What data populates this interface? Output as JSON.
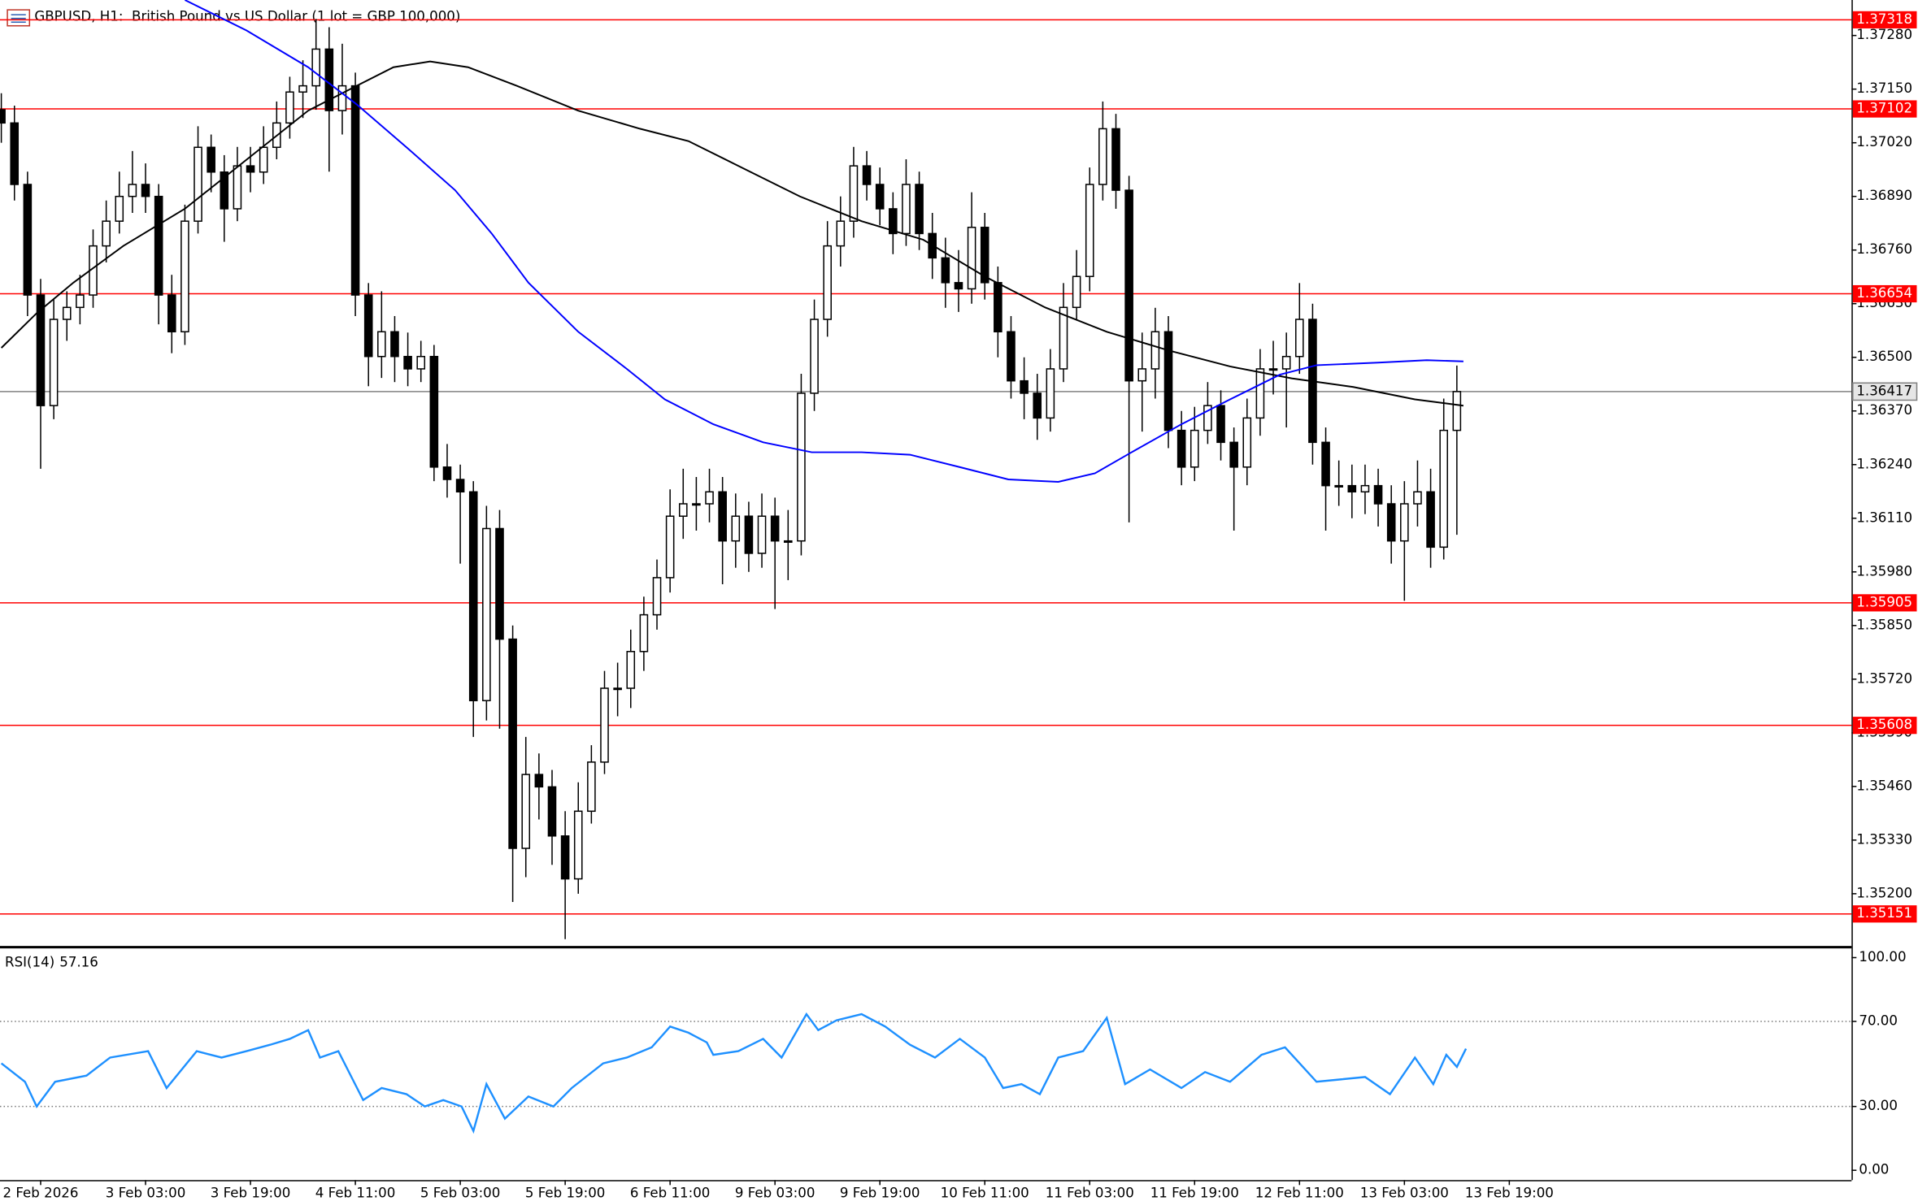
{
  "chart_data": {
    "type": "candlestick",
    "title": "GBPUSD, H1:  British Pound vs US Dollar (1 lot = GBP 100,000)",
    "xlim": [
      -0.1,
      141.1
    ],
    "xticks": [
      {
        "value": 3,
        "label": "2 Feb 2026"
      },
      {
        "value": 11,
        "label": "3 Feb 03:00"
      },
      {
        "value": 19,
        "label": "3 Feb 19:00"
      },
      {
        "value": 27,
        "label": "4 Feb 11:00"
      },
      {
        "value": 35,
        "label": "5 Feb 03:00"
      },
      {
        "value": 43,
        "label": "5 Feb 19:00"
      },
      {
        "value": 51,
        "label": "6 Feb 11:00"
      },
      {
        "value": 59,
        "label": "9 Feb 03:00"
      },
      {
        "value": 67,
        "label": "9 Feb 19:00"
      },
      {
        "value": 75,
        "label": "10 Feb 11:00"
      },
      {
        "value": 83,
        "label": "11 Feb 03:00"
      },
      {
        "value": 91,
        "label": "11 Feb 19:00"
      },
      {
        "value": 99,
        "label": "12 Feb 11:00"
      },
      {
        "value": 107,
        "label": "13 Feb 03:00"
      },
      {
        "value": 115,
        "label": "13 Feb 19:00"
      }
    ],
    "ylim": [
      1.35072,
      1.37366
    ],
    "yticks": [
      {
        "value": 1.3728,
        "label": "1.37280"
      },
      {
        "value": 1.3715,
        "label": "1.37150"
      },
      {
        "value": 1.3702,
        "label": "1.37020"
      },
      {
        "value": 1.3689,
        "label": "1.36890"
      },
      {
        "value": 1.3676,
        "label": "1.36760"
      },
      {
        "value": 1.3663,
        "label": "1.36630"
      },
      {
        "value": 1.365,
        "label": "1.36500"
      },
      {
        "value": 1.3637,
        "label": "1.36370"
      },
      {
        "value": 1.3624,
        "label": "1.36240"
      },
      {
        "value": 1.3611,
        "label": "1.36110"
      },
      {
        "value": 1.3598,
        "label": "1.35980"
      },
      {
        "value": 1.3585,
        "label": "1.35850"
      },
      {
        "value": 1.3572,
        "label": "1.35720"
      },
      {
        "value": 1.3559,
        "label": "1.35590"
      },
      {
        "value": 1.3546,
        "label": "1.35460"
      },
      {
        "value": 1.3533,
        "label": "1.35330"
      },
      {
        "value": 1.352,
        "label": "1.35200"
      }
    ],
    "bull_color": "#ffffff",
    "bear_color": "#000000",
    "open": [
      1.371,
      1.37068,
      1.36919,
      1.36651,
      1.36383,
      1.36592,
      1.36621,
      1.36651,
      1.3677,
      1.3683,
      1.3689,
      1.36919,
      1.3689,
      1.36651,
      1.36562,
      1.3683,
      1.37009,
      1.36949,
      1.3686,
      1.36964,
      1.36949,
      1.37009,
      1.37068,
      1.37143,
      1.37158,
      1.37247,
      1.37098,
      1.37158,
      1.36651,
      1.36502,
      1.36562,
      1.36502,
      1.36472,
      1.36502,
      1.36234,
      1.36204,
      1.36174,
      1.35668,
      1.36085,
      1.35817,
      1.3531,
      1.35489,
      1.35459,
      1.3534,
      1.35236,
      1.354,
      1.35519,
      1.35698,
      1.35698,
      1.35787,
      1.35876,
      1.35966,
      1.36115,
      1.36145,
      1.36145,
      1.36174,
      1.36055,
      1.36115,
      1.36025,
      1.36115,
      1.36055,
      1.36055,
      1.36413,
      1.36592,
      1.3677,
      1.3683,
      1.36964,
      1.36919,
      1.3686,
      1.368,
      1.36919,
      1.368,
      1.36741,
      1.36681,
      1.36666,
      1.36815,
      1.36681,
      1.36562,
      1.36443,
      1.36413,
      1.36353,
      1.36472,
      1.36621,
      1.36696,
      1.36919,
      1.37054,
      1.36905,
      1.36443,
      1.36472,
      1.36562,
      1.36323,
      1.36234,
      1.36323,
      1.36383,
      1.36294,
      1.36234,
      1.36353,
      1.36472,
      1.36472,
      1.36502,
      1.36592,
      1.36294,
      1.36189,
      1.36189,
      1.36174,
      1.36189,
      1.36145,
      1.36055,
      1.36145,
      1.36174,
      1.3604,
      1.36323
    ],
    "high": [
      1.3714,
      1.3711,
      1.3695,
      1.3669,
      1.3664,
      1.3666,
      1.367,
      1.3681,
      1.3688,
      1.3695,
      1.37,
      1.3697,
      1.3692,
      1.367,
      1.3687,
      1.3706,
      1.3704,
      1.3699,
      1.3701,
      1.3701,
      1.3706,
      1.3712,
      1.3718,
      1.3722,
      1.3732,
      1.373,
      1.3726,
      1.3719,
      1.3668,
      1.3666,
      1.366,
      1.3656,
      1.3654,
      1.3653,
      1.3629,
      1.3624,
      1.362,
      1.3614,
      1.3613,
      1.3585,
      1.3558,
      1.3554,
      1.355,
      1.354,
      1.3547,
      1.3556,
      1.3574,
      1.3576,
      1.3584,
      1.3592,
      1.3601,
      1.3618,
      1.3623,
      1.3621,
      1.3623,
      1.3621,
      1.3617,
      1.3615,
      1.3617,
      1.3616,
      1.3613,
      1.3646,
      1.3664,
      1.3683,
      1.3689,
      1.3701,
      1.37,
      1.3696,
      1.369,
      1.3698,
      1.3695,
      1.3685,
      1.3679,
      1.3676,
      1.369,
      1.3685,
      1.3672,
      1.366,
      1.365,
      1.3646,
      1.3652,
      1.3668,
      1.3676,
      1.3696,
      1.3712,
      1.3709,
      1.3694,
      1.3656,
      1.3662,
      1.366,
      1.3637,
      1.3638,
      1.3644,
      1.3642,
      1.3633,
      1.364,
      1.3652,
      1.3654,
      1.3656,
      1.3668,
      1.3663,
      1.3633,
      1.3625,
      1.3624,
      1.3624,
      1.3623,
      1.3619,
      1.362,
      1.3625,
      1.3623,
      1.364,
      1.3648
    ],
    "low": [
      1.3702,
      1.3688,
      1.366,
      1.3623,
      1.3635,
      1.3654,
      1.3658,
      1.3662,
      1.3673,
      1.368,
      1.3685,
      1.3685,
      1.3658,
      1.3651,
      1.3653,
      1.368,
      1.369,
      1.3678,
      1.3683,
      1.369,
      1.3692,
      1.3698,
      1.3703,
      1.3708,
      1.371,
      1.3695,
      1.3704,
      1.366,
      1.3643,
      1.3645,
      1.3644,
      1.3643,
      1.3644,
      1.362,
      1.3616,
      1.36,
      1.3558,
      1.3562,
      1.356,
      1.3518,
      1.3524,
      1.3538,
      1.3527,
      1.3509,
      1.352,
      1.3537,
      1.3549,
      1.3563,
      1.3565,
      1.3574,
      1.3584,
      1.3593,
      1.3606,
      1.3608,
      1.361,
      1.3595,
      1.3599,
      1.3598,
      1.3599,
      1.3589,
      1.3596,
      1.3602,
      1.3637,
      1.3655,
      1.3672,
      1.3679,
      1.3688,
      1.3682,
      1.3675,
      1.3677,
      1.3676,
      1.3669,
      1.3662,
      1.3661,
      1.3663,
      1.3664,
      1.365,
      1.364,
      1.3635,
      1.363,
      1.3632,
      1.3644,
      1.3659,
      1.3666,
      1.3688,
      1.3686,
      1.361,
      1.3632,
      1.364,
      1.3628,
      1.3619,
      1.362,
      1.3629,
      1.3625,
      1.3608,
      1.3619,
      1.3631,
      1.3641,
      1.3633,
      1.3646,
      1.3624,
      1.3608,
      1.3614,
      1.3611,
      1.3612,
      1.3609,
      1.36,
      1.3591,
      1.3609,
      1.3599,
      1.3601,
      1.3607
    ],
    "close": [
      1.37068,
      1.36919,
      1.36651,
      1.36383,
      1.36592,
      1.36621,
      1.36651,
      1.3677,
      1.3683,
      1.3689,
      1.36919,
      1.3689,
      1.36651,
      1.36562,
      1.3683,
      1.37009,
      1.36949,
      1.3686,
      1.36964,
      1.36949,
      1.37009,
      1.37068,
      1.37143,
      1.37158,
      1.37247,
      1.37098,
      1.37158,
      1.36651,
      1.36502,
      1.36562,
      1.36502,
      1.36472,
      1.36502,
      1.36234,
      1.36204,
      1.36174,
      1.35668,
      1.36085,
      1.35817,
      1.3531,
      1.35489,
      1.35459,
      1.3534,
      1.35236,
      1.354,
      1.35519,
      1.35698,
      1.35698,
      1.35787,
      1.35876,
      1.35966,
      1.36115,
      1.36145,
      1.36145,
      1.36174,
      1.36055,
      1.36115,
      1.36025,
      1.36115,
      1.36055,
      1.36055,
      1.36413,
      1.36592,
      1.3677,
      1.3683,
      1.36964,
      1.36919,
      1.3686,
      1.368,
      1.36919,
      1.368,
      1.36741,
      1.36681,
      1.36666,
      1.36815,
      1.36681,
      1.36562,
      1.36443,
      1.36413,
      1.36353,
      1.36472,
      1.36621,
      1.36696,
      1.36919,
      1.37054,
      1.36905,
      1.36443,
      1.36472,
      1.36562,
      1.36323,
      1.36234,
      1.36323,
      1.36383,
      1.36294,
      1.36234,
      1.36353,
      1.36472,
      1.36472,
      1.36502,
      1.36592,
      1.36294,
      1.36189,
      1.36189,
      1.36174,
      1.36189,
      1.36145,
      1.36055,
      1.36145,
      1.36174,
      1.3604,
      1.36323,
      1.36417
    ],
    "moving_averages": [
      {
        "color": "#000000",
        "x": [
          0,
          2.7,
          5.5,
          9.3,
          14,
          18.7,
          23.4,
          27.1,
          29.9,
          32.7,
          35.6,
          39.3,
          44,
          48.7,
          52.4,
          56.2,
          60.9,
          65.6,
          70.3,
          75,
          79.6,
          84.3,
          89,
          93.7,
          98.4,
          103.1,
          107.8,
          111.5
        ],
        "values": [
          1.36523,
          1.36607,
          1.36681,
          1.3677,
          1.3686,
          1.36979,
          1.37098,
          1.37158,
          1.37203,
          1.37217,
          1.37203,
          1.37158,
          1.37098,
          1.37054,
          1.37024,
          1.36964,
          1.3689,
          1.3683,
          1.36785,
          1.36696,
          1.36621,
          1.36562,
          1.36517,
          1.36478,
          1.36449,
          1.36428,
          1.36398,
          1.36383
        ]
      },
      {
        "color": "#0000ff",
        "x": [
          14,
          18.7,
          23.4,
          27.1,
          30.9,
          34.6,
          37.4,
          40.2,
          44,
          47.7,
          50.6,
          54.3,
          58.1,
          61.8,
          65.6,
          69.3,
          73.1,
          76.8,
          80.6,
          83.4,
          86.2,
          90,
          93.7,
          97.5,
          100.3,
          105,
          108.7,
          111.5
        ],
        "values": [
          1.37366,
          1.37292,
          1.37203,
          1.37113,
          1.37009,
          1.36905,
          1.368,
          1.36681,
          1.36562,
          1.36472,
          1.36398,
          1.36338,
          1.36294,
          1.3627,
          1.3627,
          1.36264,
          1.36234,
          1.36204,
          1.36198,
          1.36219,
          1.3627,
          1.36338,
          1.36398,
          1.36458,
          1.36481,
          1.36487,
          1.36493,
          1.3649
        ]
      }
    ],
    "levels": [
      {
        "value": 1.37318,
        "color": "#ff0000"
      },
      {
        "value": 1.37102,
        "color": "#ff0000"
      },
      {
        "value": 1.36654,
        "color": "#ff0000"
      },
      {
        "value": 1.35905,
        "color": "#ff0000"
      },
      {
        "value": 1.35608,
        "color": "#ff0000"
      },
      {
        "value": 1.35151,
        "color": "#ff0000"
      }
    ],
    "price_line": {
      "value": 1.36417,
      "color": "#808080"
    },
    "rsi": {
      "name": "RSI(14)",
      "color": "#1e90ff",
      "ylim": [
        -4.62,
        104.05
      ],
      "yticks": [
        {
          "value": 100,
          "label": "100.00"
        },
        {
          "value": 70,
          "label": "70.00"
        },
        {
          "value": 30,
          "label": "30.00"
        },
        {
          "value": 0,
          "label": "0.00"
        }
      ],
      "levels": [
        70,
        30
      ],
      "x": [
        0,
        1.8,
        2.7,
        4.1,
        6.5,
        8.3,
        11.2,
        12.6,
        14.9,
        16.8,
        18.7,
        20.5,
        22,
        23.4,
        24.3,
        25.7,
        27.6,
        29,
        30.9,
        32.3,
        33.7,
        35.1,
        36,
        37,
        38.4,
        40.2,
        42.1,
        43.5,
        45.9,
        47.7,
        49.6,
        51,
        52.4,
        53.8,
        54.3,
        56.2,
        58.1,
        59.5,
        61.4,
        62.3,
        63.7,
        65.6,
        67.4,
        69.3,
        71.2,
        73.1,
        75,
        76.4,
        77.8,
        79.2,
        80.6,
        82.5,
        84.3,
        85.7,
        87.6,
        90,
        91.8,
        93.7,
        96.1,
        97.9,
        100.3,
        102.2,
        104,
        105.9,
        107.8,
        109.2,
        110.2,
        111,
        111.7
      ],
      "values": [
        50.3,
        41.6,
        30,
        41.6,
        44.5,
        53,
        56,
        38.7,
        56,
        53,
        56,
        59,
        61.8,
        65.9,
        53,
        56,
        33,
        38.7,
        35.8,
        30,
        33,
        30,
        18.5,
        40.5,
        24.3,
        34.7,
        30,
        38.7,
        50.3,
        53,
        57.8,
        67.6,
        64.7,
        60.1,
        54.3,
        56,
        61.8,
        53,
        73.4,
        65.9,
        70.5,
        73.4,
        67.6,
        59,
        53,
        61.8,
        53,
        38.7,
        40.5,
        35.8,
        53,
        56,
        71.7,
        40.5,
        47.4,
        38.7,
        46.2,
        41.6,
        54.3,
        57.8,
        41.6,
        42.8,
        43.9,
        35.8,
        53,
        40.5,
        54.3,
        48.6,
        57.16
      ]
    }
  }
}
